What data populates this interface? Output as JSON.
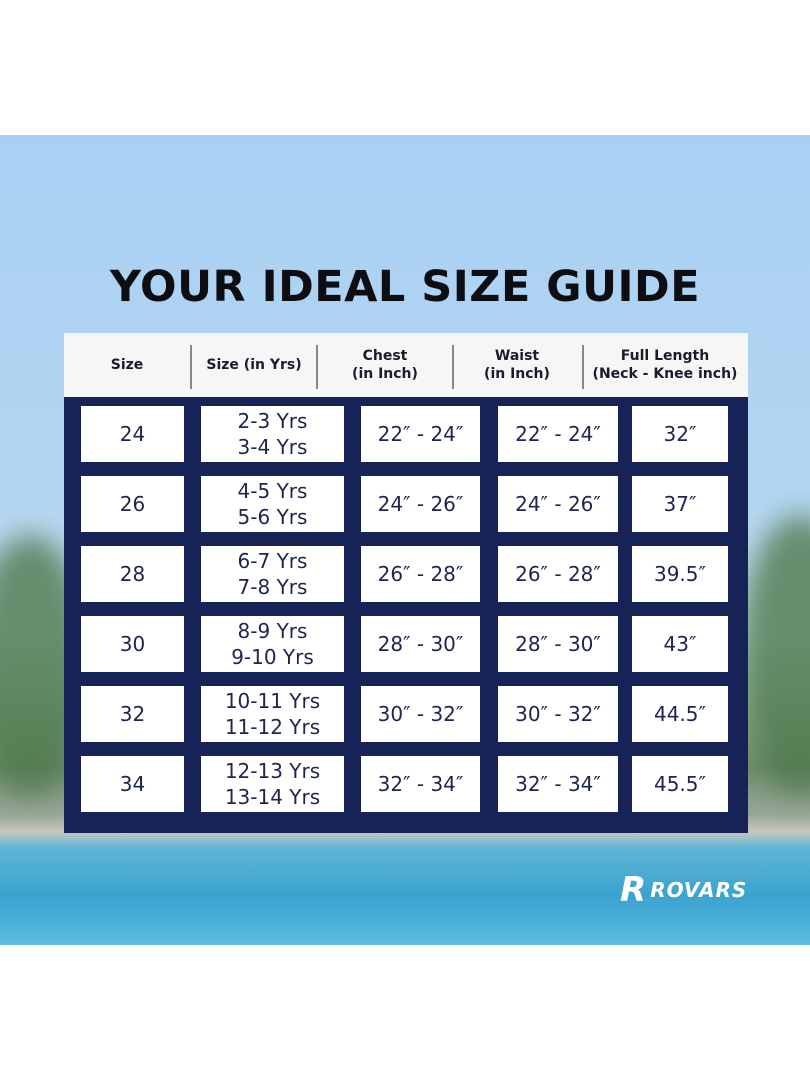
{
  "title": "YOUR IDEAL SIZE GUIDE",
  "headers": [
    "Size",
    "Size (in Yrs)",
    "Chest\n(in Inch)",
    "Waist\n(in Inch)",
    "Full Length\n(Neck - Knee inch)"
  ],
  "rows": [
    [
      "24",
      "2-3 Yrs\n3-4 Yrs",
      "22″ - 24″",
      "22″ - 24″",
      "32″"
    ],
    [
      "26",
      "4-5 Yrs\n5-6 Yrs",
      "24″ - 26″",
      "24″ - 26″",
      "37″"
    ],
    [
      "28",
      "6-7 Yrs\n7-8 Yrs",
      "26″ - 28″",
      "26″ - 28″",
      "39.5″"
    ],
    [
      "30",
      "8-9 Yrs\n9-10 Yrs",
      "28″ - 30″",
      "28″ - 30″",
      "43″"
    ],
    [
      "32",
      "10-11 Yrs\n11-12 Yrs",
      "30″ - 32″",
      "30″ - 32″",
      "44.5″"
    ],
    [
      "34",
      "12-13 Yrs\n13-14 Yrs",
      "32″ - 34″",
      "32″ - 34″",
      "45.5″"
    ]
  ],
  "brand": {
    "logo_mark": "R",
    "name": "ROVARS"
  },
  "colors": {
    "table_bg": "#172356",
    "header_bg": "#f6f6f6",
    "text": "#1d2550"
  }
}
